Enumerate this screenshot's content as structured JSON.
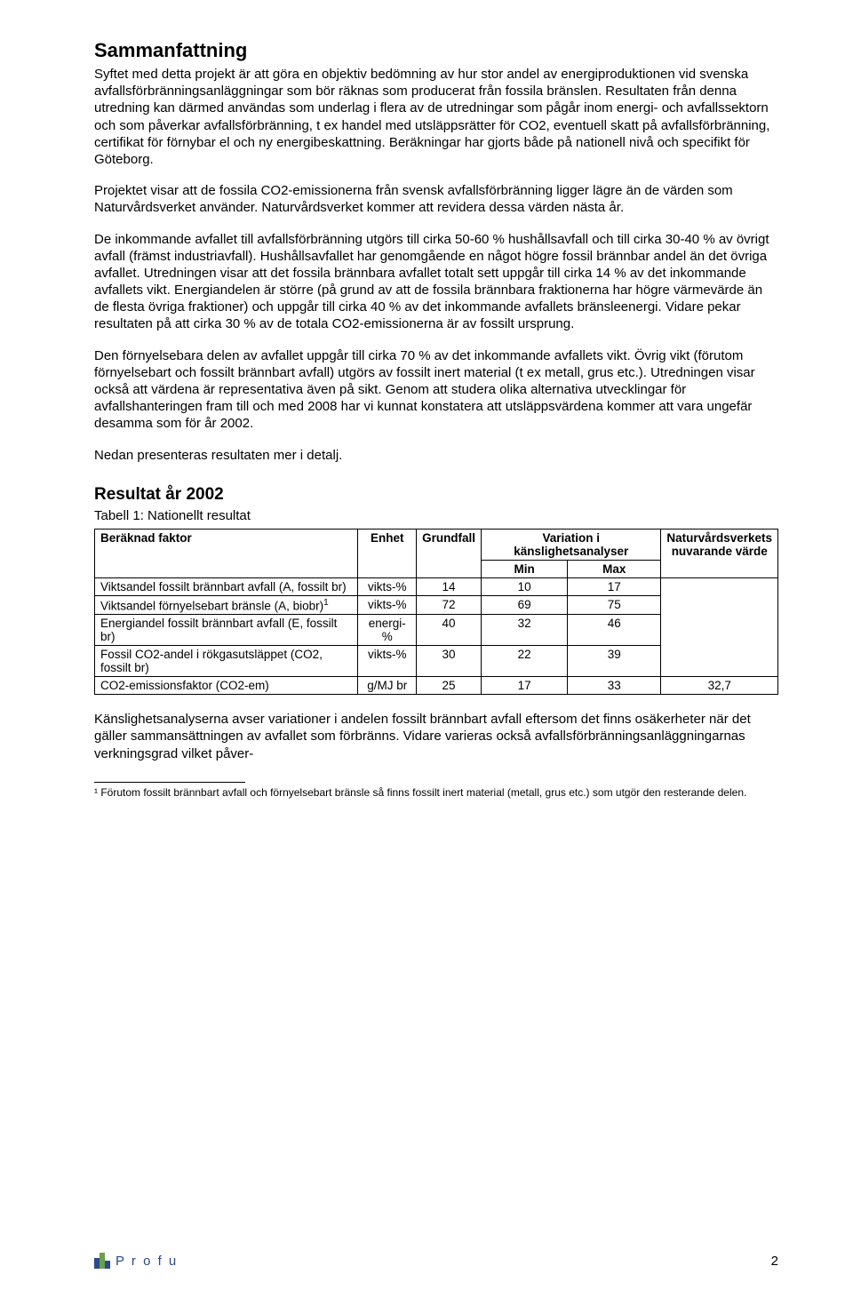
{
  "title": "Sammanfattning",
  "paragraphs": {
    "p1": "Syftet med detta projekt är att göra en objektiv bedömning av hur stor andel av energiproduktionen vid svenska avfallsförbränningsanläggningar som bör räknas som producerat från fossila bränslen. Resultaten från denna utredning kan därmed användas som underlag i flera av de utredningar som pågår inom energi- och avfallssektorn och som påverkar avfallsförbränning, t ex handel med utsläppsrätter för CO2, eventuell skatt på avfallsförbränning, certifikat för förnybar el och ny energibeskattning. Beräkningar har gjorts både på nationell nivå och specifikt för Göteborg.",
    "p2": "Projektet visar att de fossila CO2-emissionerna från svensk avfallsförbränning ligger lägre än de värden som Naturvårdsverket använder. Naturvårdsverket kommer att revidera dessa värden nästa år.",
    "p3": "De inkommande avfallet till avfallsförbränning utgörs till cirka 50-60 % hushållsavfall och till cirka 30-40 % av övrigt avfall (främst industriavfall). Hushållsavfallet har genomgående en något högre fossil brännbar andel än det övriga avfallet. Utredningen visar att det fossila brännbara avfallet totalt sett uppgår till cirka 14 % av det inkommande avfallets vikt. Energiandelen är större (på grund av att de fossila brännbara fraktionerna har högre värmevärde än de flesta övriga fraktioner) och uppgår till cirka 40 % av det inkommande avfallets bränsleenergi. Vidare pekar resultaten på att cirka 30 % av de totala CO2-emissionerna är av fossilt ursprung.",
    "p4": "Den förnyelsebara delen av avfallet uppgår till cirka 70 % av det inkommande avfallets vikt. Övrig vikt (förutom förnyelsebart och fossilt brännbart avfall) utgörs av fossilt inert material (t ex metall, grus etc.). Utredningen visar också att värdena är representativa även på sikt. Genom att studera olika alternativa utvecklingar för avfallshanteringen fram till och med 2008 har vi kunnat konstatera att utsläppsvärdena kommer att vara ungefär desamma som för år 2002.",
    "p5": "Nedan presenteras resultaten mer i detalj.",
    "p6": "Känslighetsanalyserna avser variationer i andelen fossilt brännbart avfall eftersom det finns osäkerheter när det gäller sammansättningen av avfallet som förbränns. Vidare varieras också avfallsförbränningsanläggningarnas verkningsgrad vilket påver-"
  },
  "section_heading": "Resultat år 2002",
  "table": {
    "caption": "Tabell 1:  Nationellt resultat",
    "headers": {
      "factor": "Beräknad faktor",
      "unit": "Enhet",
      "base": "Grundfall",
      "variation": "Variation i känslighetsanalyser",
      "min": "Min",
      "max": "Max",
      "natur": "Naturvårdsverkets nuvarande värde"
    },
    "rows": [
      {
        "factor": "Viktsandel fossilt brännbart avfall (A, fossilt br)",
        "unit": "vikts-%",
        "base": "14",
        "min": "10",
        "max": "17",
        "natur": ""
      },
      {
        "factor_html": "Viktsandel förnyelsebart bränsle (A, biobr)<sup>1</sup>",
        "factor": "Viktsandel förnyelsebart bränsle (A, biobr)1",
        "unit": "vikts-%",
        "base": "72",
        "min": "69",
        "max": "75",
        "natur": ""
      },
      {
        "factor": "Energiandel fossilt brännbart avfall (E, fossilt br)",
        "unit": "energi-%",
        "base": "40",
        "min": "32",
        "max": "46",
        "natur": ""
      },
      {
        "factor": "Fossil CO2-andel i rökgasutsläppet (CO2, fossilt br)",
        "unit": "vikts-%",
        "base": "30",
        "min": "22",
        "max": "39",
        "natur": ""
      },
      {
        "factor": "CO2-emissionsfaktor (CO2-em)",
        "unit": "g/MJ br",
        "base": "25",
        "min": "17",
        "max": "33",
        "natur": "32,7"
      }
    ]
  },
  "footnote": "¹ Förutom fossilt brännbart avfall och förnyelsebart bränsle så finns fossilt inert material (metall, grus etc.) som utgör den resterande delen.",
  "footer": {
    "logo_text": "P r o f u",
    "page_number": "2"
  },
  "colors": {
    "logo_blue": "#2a4a8a",
    "logo_green": "#6aa04a"
  }
}
